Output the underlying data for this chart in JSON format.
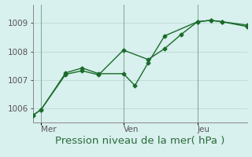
{
  "background_color": "#d8f0ee",
  "grid_color": "#c0ddd8",
  "line_color": "#1a6b2a",
  "xlabel": "Pression niveau de la mer( hPa )",
  "xlabel_fontsize": 9.5,
  "xlabel_color": "#2a6b3a",
  "ylim": [
    1005.5,
    1009.65
  ],
  "xlim": [
    0,
    13
  ],
  "yticks": [
    1006,
    1007,
    1008,
    1009
  ],
  "ytick_fontsize": 7.5,
  "xtick_positions": [
    0.5,
    5.5,
    10.0
  ],
  "xtick_labels": [
    "Mer",
    "Ven",
    "Jeu"
  ],
  "xtick_fontsize": 7.5,
  "vlines_x": [
    0.5,
    5.5,
    10.0
  ],
  "series1_x": [
    0,
    0.5,
    2,
    3,
    4,
    5.5,
    7,
    8,
    9,
    10,
    10.8,
    11.5,
    13
  ],
  "series1_y": [
    1005.75,
    1005.95,
    1007.2,
    1007.32,
    1007.18,
    1008.05,
    1007.72,
    1008.1,
    1008.6,
    1009.05,
    1009.1,
    1009.05,
    1008.93
  ],
  "series2_x": [
    0,
    0.5,
    2,
    3,
    4,
    5.5,
    6.2,
    7,
    8,
    10,
    10.8,
    11.5,
    13
  ],
  "series2_y": [
    1005.75,
    1005.95,
    1007.25,
    1007.42,
    1007.22,
    1007.22,
    1006.8,
    1007.6,
    1008.55,
    1009.05,
    1009.1,
    1009.05,
    1008.88
  ],
  "marker": "D",
  "markersize": 2.5,
  "linewidth": 1.0,
  "spine_color": "#888888",
  "tick_color": "#555555"
}
